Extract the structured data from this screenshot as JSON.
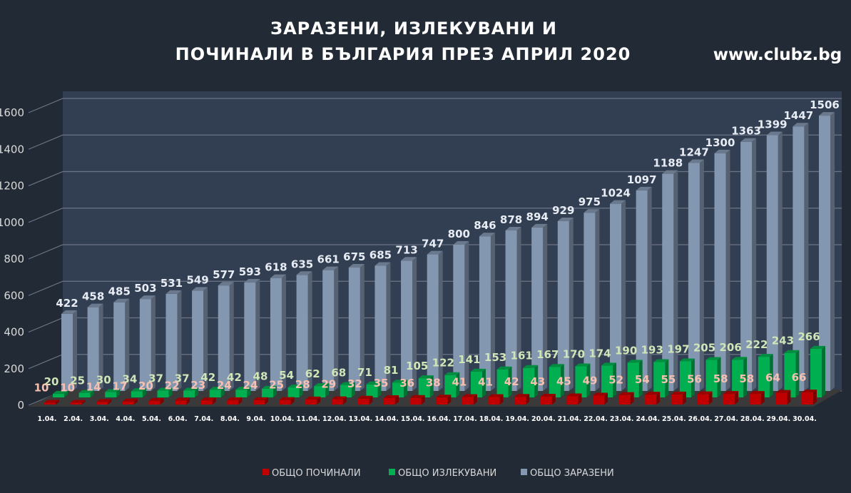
{
  "chart_data": {
    "type": "bar",
    "title_line1": "ЗАРАЗЕНИ, ИЗЛЕКУВАНИ И",
    "title_line2": "ПОЧИНАЛИ В БЪЛГАРИЯ ПРЕЗ АПРИЛ 2020",
    "source": "www.clubz.bg",
    "xlabel": "",
    "ylabel": "",
    "ylim": [
      0,
      1600
    ],
    "yticks": [
      0,
      200,
      400,
      600,
      800,
      1000,
      1200,
      1400,
      1600
    ],
    "grid": true,
    "legend_position": "bottom",
    "categories": [
      "1.04.",
      "2.04.",
      "3.04.",
      "4.04.",
      "5.04.",
      "6.04.",
      "7.04.",
      "8.04.",
      "9.04.",
      "10.04.",
      "11.04.",
      "12.04.",
      "13.04.",
      "14.04.",
      "15.04.",
      "16.04.",
      "17.04.",
      "18.04.",
      "19.04.",
      "20.04.",
      "21.04.",
      "22.04.",
      "23.04.",
      "24.04.",
      "25.04.",
      "26.04.",
      "27.04.",
      "28.04.",
      "29.04.",
      "30.04."
    ],
    "series": [
      {
        "name": "ОБЩО ПОЧИНАЛИ",
        "color": "#c00000",
        "label_color": "#f8c0b0",
        "values": [
          10,
          10,
          14,
          17,
          20,
          22,
          23,
          24,
          24,
          25,
          28,
          29,
          32,
          35,
          36,
          38,
          41,
          41,
          42,
          43,
          45,
          49,
          52,
          54,
          55,
          56,
          58,
          58,
          64,
          66
        ]
      },
      {
        "name": "ОБЩО ИЗЛЕКУВАНИ",
        "color": "#00b050",
        "label_color": "#d0e6b8",
        "values": [
          20,
          25,
          30,
          34,
          37,
          37,
          42,
          42,
          48,
          54,
          62,
          68,
          71,
          81,
          105,
          122,
          141,
          153,
          161,
          167,
          170,
          174,
          190,
          193,
          197,
          205,
          206,
          222,
          243,
          266
        ]
      },
      {
        "name": "ОБЩО ЗАРАЗЕНИ",
        "color": "#8497b0",
        "label_color": "#e8ecf4",
        "values": [
          422,
          458,
          485,
          503,
          531,
          549,
          577,
          593,
          618,
          635,
          661,
          675,
          685,
          713,
          747,
          800,
          846,
          878,
          894,
          929,
          975,
          1024,
          1097,
          1188,
          1247,
          1300,
          1363,
          1399,
          1447,
          1506
        ]
      }
    ]
  }
}
